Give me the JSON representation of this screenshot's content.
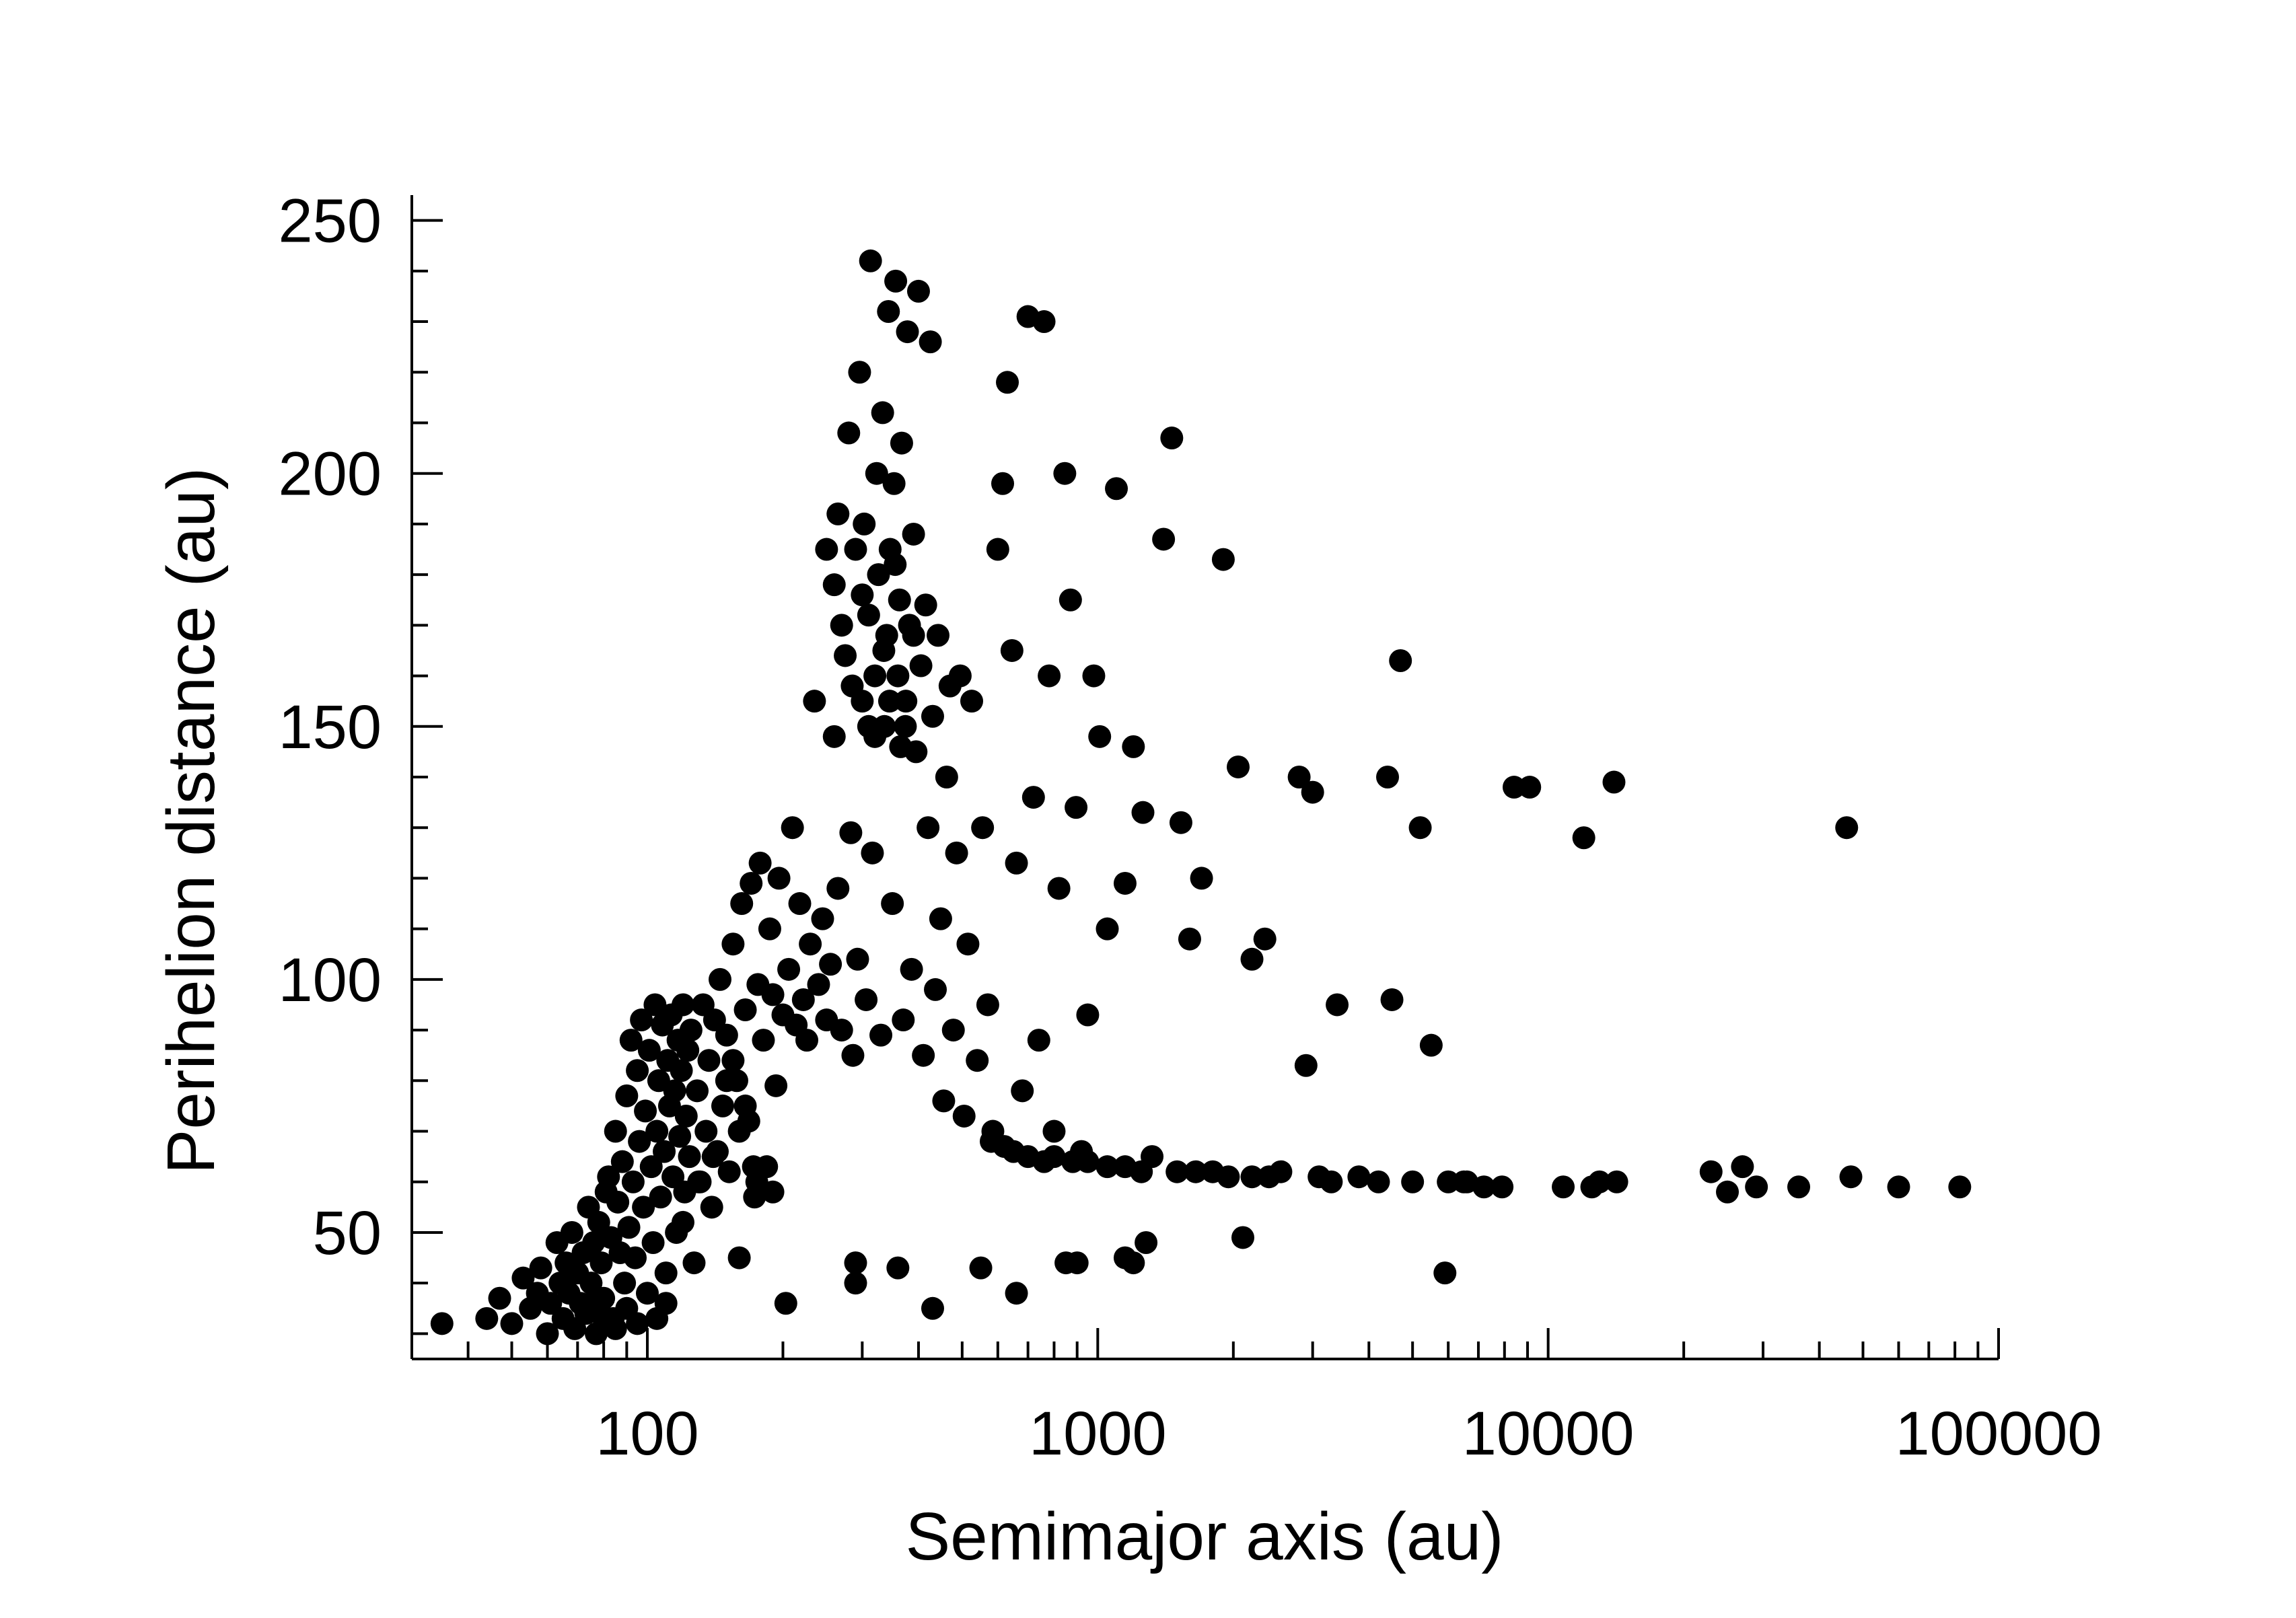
{
  "chart_data": {
    "type": "scatter",
    "title": "",
    "xlabel": "Semimajor axis (au)",
    "ylabel": "Perihelion distance (au)",
    "xscale": "log",
    "xlim": [
      30,
      100000
    ],
    "ylim": [
      25,
      255
    ],
    "grid": false,
    "legend": "none",
    "marker_color": "#000000",
    "xticks": [
      {
        "value": 100,
        "label": "100"
      },
      {
        "value": 1000,
        "label": "1000"
      },
      {
        "value": 10000,
        "label": "10000"
      },
      {
        "value": 100000,
        "label": "100000"
      }
    ],
    "yticks": [
      {
        "value": 50,
        "label": "50"
      },
      {
        "value": 100,
        "label": "100"
      },
      {
        "value": 150,
        "label": "150"
      },
      {
        "value": 200,
        "label": "200"
      },
      {
        "value": 250,
        "label": "250"
      }
    ],
    "points": [
      [
        35,
        32
      ],
      [
        44,
        33
      ],
      [
        47,
        37
      ],
      [
        50,
        32
      ],
      [
        53,
        41
      ],
      [
        55,
        35
      ],
      [
        57,
        38
      ],
      [
        58,
        43
      ],
      [
        60,
        30
      ],
      [
        61,
        36
      ],
      [
        63,
        48
      ],
      [
        64,
        40
      ],
      [
        65,
        33
      ],
      [
        66,
        44
      ],
      [
        67,
        38
      ],
      [
        68,
        50
      ],
      [
        69,
        31
      ],
      [
        70,
        42
      ],
      [
        71,
        36
      ],
      [
        72,
        46
      ],
      [
        73,
        34
      ],
      [
        74,
        55
      ],
      [
        75,
        40
      ],
      [
        76,
        48
      ],
      [
        77,
        30
      ],
      [
        78,
        52
      ],
      [
        79,
        44
      ],
      [
        80,
        37
      ],
      [
        81,
        58
      ],
      [
        82,
        61
      ],
      [
        83,
        49
      ],
      [
        84,
        33
      ],
      [
        85,
        70
      ],
      [
        86,
        56
      ],
      [
        87,
        46
      ],
      [
        88,
        64
      ],
      [
        89,
        40
      ],
      [
        90,
        77
      ],
      [
        91,
        51
      ],
      [
        92,
        88
      ],
      [
        93,
        60
      ],
      [
        94,
        45
      ],
      [
        95,
        82
      ],
      [
        96,
        68
      ],
      [
        97,
        92
      ],
      [
        98,
        55
      ],
      [
        99,
        74
      ],
      [
        100,
        38
      ],
      [
        101,
        86
      ],
      [
        102,
        63
      ],
      [
        103,
        48
      ],
      [
        104,
        95
      ],
      [
        105,
        70
      ],
      [
        106,
        80
      ],
      [
        107,
        57
      ],
      [
        108,
        91
      ],
      [
        109,
        66
      ],
      [
        110,
        42
      ],
      [
        111,
        84
      ],
      [
        112,
        75
      ],
      [
        113,
        93
      ],
      [
        114,
        61
      ],
      [
        115,
        78
      ],
      [
        116,
        50
      ],
      [
        117,
        88
      ],
      [
        118,
        69
      ],
      [
        119,
        82
      ],
      [
        120,
        95
      ],
      [
        121,
        58
      ],
      [
        122,
        73
      ],
      [
        123,
        86
      ],
      [
        124,
        65
      ],
      [
        125,
        90
      ],
      [
        127,
        44
      ],
      [
        129,
        78
      ],
      [
        131,
        60
      ],
      [
        133,
        95
      ],
      [
        135,
        70
      ],
      [
        137,
        84
      ],
      [
        139,
        55
      ],
      [
        141,
        92
      ],
      [
        143,
        66
      ],
      [
        145,
        100
      ],
      [
        147,
        75
      ],
      [
        150,
        89
      ],
      [
        152,
        62
      ],
      [
        155,
        107
      ],
      [
        158,
        80
      ],
      [
        160,
        45
      ],
      [
        162,
        115
      ],
      [
        165,
        94
      ],
      [
        168,
        72
      ],
      [
        170,
        119
      ],
      [
        173,
        57
      ],
      [
        176,
        99
      ],
      [
        178,
        123
      ],
      [
        181,
        88
      ],
      [
        184,
        63
      ],
      [
        187,
        110
      ],
      [
        190,
        97
      ],
      [
        193,
        79
      ],
      [
        196,
        120
      ],
      [
        200,
        93
      ],
      [
        203,
        36
      ],
      [
        206,
        102
      ],
      [
        210,
        130
      ],
      [
        214,
        91
      ],
      [
        218,
        115
      ],
      [
        222,
        96
      ],
      [
        226,
        88
      ],
      [
        230,
        107
      ],
      [
        235,
        155
      ],
      [
        240,
        99
      ],
      [
        245,
        112
      ],
      [
        250,
        92
      ],
      [
        255,
        103
      ],
      [
        260,
        148
      ],
      [
        265,
        118
      ],
      [
        270,
        90
      ],
      [
        275,
        164
      ],
      [
        280,
        208
      ],
      [
        283,
        129
      ],
      [
        286,
        85
      ],
      [
        290,
        185
      ],
      [
        293,
        104
      ],
      [
        296,
        220
      ],
      [
        300,
        155
      ],
      [
        303,
        190
      ],
      [
        306,
        96
      ],
      [
        310,
        172
      ],
      [
        313,
        242
      ],
      [
        316,
        125
      ],
      [
        320,
        160
      ],
      [
        323,
        200
      ],
      [
        326,
        180
      ],
      [
        330,
        89
      ],
      [
        333,
        212
      ],
      [
        336,
        150
      ],
      [
        340,
        168
      ],
      [
        343,
        232
      ],
      [
        346,
        185
      ],
      [
        350,
        115
      ],
      [
        353,
        198
      ],
      [
        356,
        238
      ],
      [
        360,
        160
      ],
      [
        363,
        175
      ],
      [
        367,
        206
      ],
      [
        370,
        92
      ],
      [
        374,
        150
      ],
      [
        378,
        228
      ],
      [
        382,
        170
      ],
      [
        386,
        102
      ],
      [
        390,
        188
      ],
      [
        395,
        145
      ],
      [
        400,
        236
      ],
      [
        405,
        162
      ],
      [
        410,
        85
      ],
      [
        415,
        174
      ],
      [
        420,
        130
      ],
      [
        425,
        226
      ],
      [
        430,
        152
      ],
      [
        436,
        98
      ],
      [
        442,
        168
      ],
      [
        448,
        112
      ],
      [
        455,
        76
      ],
      [
        462,
        140
      ],
      [
        470,
        158
      ],
      [
        478,
        90
      ],
      [
        486,
        125
      ],
      [
        495,
        160
      ],
      [
        505,
        73
      ],
      [
        515,
        107
      ],
      [
        525,
        155
      ],
      [
        540,
        84
      ],
      [
        555,
        130
      ],
      [
        570,
        95
      ],
      [
        585,
        70
      ],
      [
        600,
        185
      ],
      [
        615,
        198
      ],
      [
        630,
        218
      ],
      [
        645,
        165
      ],
      [
        660,
        123
      ],
      [
        680,
        78
      ],
      [
        700,
        231
      ],
      [
        720,
        136
      ],
      [
        740,
        88
      ],
      [
        760,
        230
      ],
      [
        780,
        160
      ],
      [
        800,
        70
      ],
      [
        820,
        118
      ],
      [
        845,
        200
      ],
      [
        870,
        175
      ],
      [
        895,
        134
      ],
      [
        920,
        66
      ],
      [
        950,
        93
      ],
      [
        980,
        160
      ],
      [
        1010,
        148
      ],
      [
        1050,
        110
      ],
      [
        1100,
        197
      ],
      [
        1150,
        119
      ],
      [
        1200,
        146
      ],
      [
        1260,
        133
      ],
      [
        1320,
        65
      ],
      [
        1400,
        187
      ],
      [
        1460,
        207
      ],
      [
        1530,
        131
      ],
      [
        1600,
        108
      ],
      [
        1700,
        120
      ],
      [
        1800,
        62
      ],
      [
        1900,
        183
      ],
      [
        2050,
        142
      ],
      [
        2100,
        49
      ],
      [
        2200,
        104
      ],
      [
        2350,
        108
      ],
      [
        2550,
        62
      ],
      [
        2800,
        140
      ],
      [
        2900,
        83
      ],
      [
        3000,
        137
      ],
      [
        3400,
        95
      ],
      [
        3800,
        61
      ],
      [
        4400,
        140
      ],
      [
        4500,
        96
      ],
      [
        4700,
        163
      ],
      [
        5200,
        130
      ],
      [
        5500,
        87
      ],
      [
        5900,
        42
      ],
      [
        6500,
        60
      ],
      [
        8400,
        138
      ],
      [
        9100,
        138
      ],
      [
        10800,
        59
      ],
      [
        12000,
        128
      ],
      [
        14000,
        139
      ],
      [
        14200,
        60
      ],
      [
        23000,
        62
      ],
      [
        25000,
        58
      ],
      [
        27000,
        63
      ],
      [
        29000,
        59
      ],
      [
        36000,
        59
      ],
      [
        46000,
        130
      ],
      [
        47000,
        61
      ],
      [
        60000,
        59
      ],
      [
        82000,
        59
      ],
      [
        290,
        44
      ],
      [
        290,
        40
      ],
      [
        360,
        43
      ],
      [
        430,
        35
      ],
      [
        550,
        43
      ],
      [
        660,
        38
      ],
      [
        850,
        44
      ],
      [
        900,
        44
      ],
      [
        1150,
        45
      ],
      [
        1200,
        44
      ],
      [
        1280,
        48
      ],
      [
        190,
        58
      ],
      [
        175,
        60
      ],
      [
        172,
        63
      ],
      [
        160,
        70
      ],
      [
        165,
        75
      ],
      [
        150,
        80
      ],
      [
        155,
        84
      ],
      [
        140,
        65
      ],
      [
        130,
        60
      ],
      [
        120,
        52
      ],
      [
        110,
        36
      ],
      [
        105,
        33
      ],
      [
        95,
        32
      ],
      [
        90,
        35
      ],
      [
        85,
        31
      ],
      [
        80,
        33
      ],
      [
        75,
        36
      ],
      [
        580,
        68
      ],
      [
        620,
        67
      ],
      [
        650,
        66
      ],
      [
        700,
        65
      ],
      [
        760,
        64
      ],
      [
        800,
        65
      ],
      [
        880,
        64
      ],
      [
        950,
        64
      ],
      [
        1050,
        63
      ],
      [
        1150,
        63
      ],
      [
        1250,
        62
      ],
      [
        1500,
        62
      ],
      [
        1650,
        62
      ],
      [
        1950,
        61
      ],
      [
        2200,
        61
      ],
      [
        2400,
        61
      ],
      [
        3100,
        61
      ],
      [
        3300,
        60
      ],
      [
        4200,
        60
      ],
      [
        5000,
        60
      ],
      [
        6000,
        60
      ],
      [
        6600,
        60
      ],
      [
        7200,
        59
      ],
      [
        7900,
        59
      ],
      [
        12500,
        59
      ],
      [
        13000,
        60
      ],
      [
        250,
        185
      ],
      [
        260,
        178
      ],
      [
        270,
        170
      ],
      [
        265,
        192
      ],
      [
        285,
        158
      ],
      [
        300,
        176
      ],
      [
        310,
        150
      ],
      [
        320,
        148
      ],
      [
        335,
        165
      ],
      [
        345,
        155
      ],
      [
        355,
        182
      ],
      [
        365,
        146
      ],
      [
        375,
        155
      ],
      [
        390,
        168
      ]
    ]
  }
}
